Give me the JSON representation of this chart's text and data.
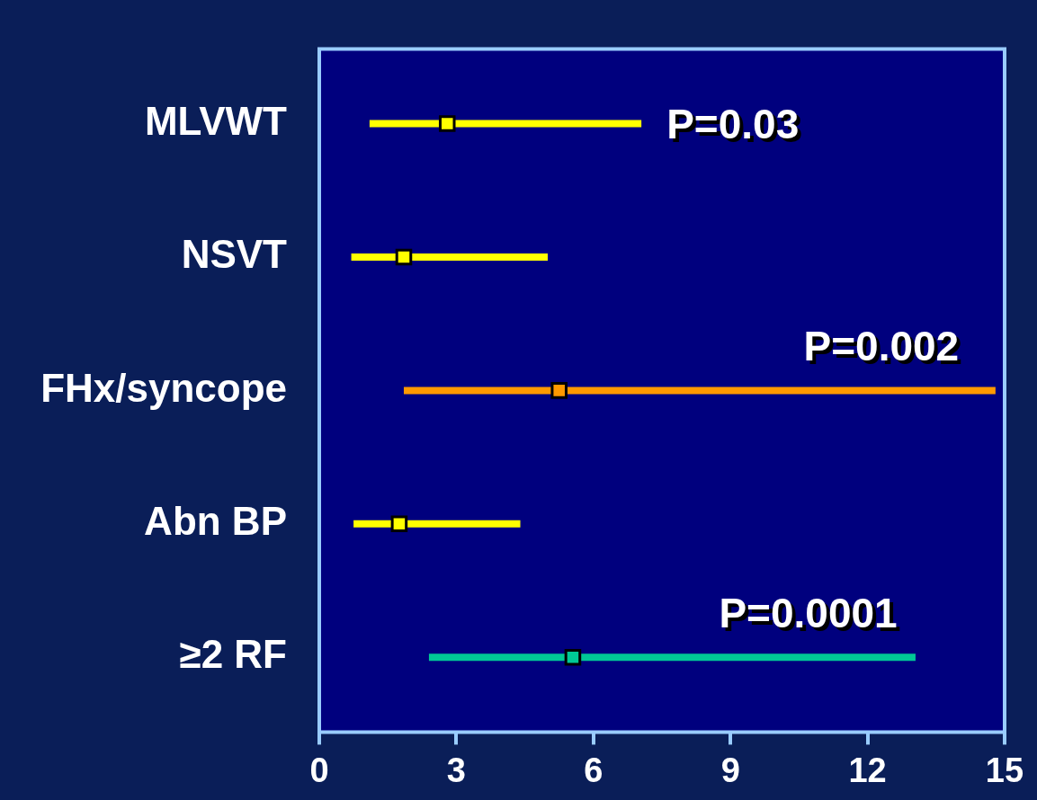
{
  "chart_data": {
    "type": "scatter",
    "orientation": "horizontal",
    "categories": [
      "MLVWT",
      "NSVT",
      "FHx/syncope",
      "Abn BP",
      "≥2 RF"
    ],
    "values": [
      2.8,
      1.85,
      5.25,
      1.75,
      5.55
    ],
    "errors": [
      [
        1.1,
        7.05
      ],
      [
        0.7,
        5.0
      ],
      [
        1.85,
        14.8
      ],
      [
        0.75,
        4.4
      ],
      [
        2.4,
        13.05
      ]
    ],
    "colors": [
      "#ffff00",
      "#ffff00",
      "#ff9900",
      "#ffff00",
      "#00c896"
    ],
    "marker": "square",
    "xlim": [
      0,
      15
    ],
    "xticks": [
      0,
      3,
      6,
      9,
      12,
      15
    ],
    "annotations": [
      {
        "text": "P=0.03",
        "x": 7.05,
        "y": "MLVWT"
      },
      {
        "text": "P=0.002",
        "x": 12.3,
        "y": "FHx/syncope"
      },
      {
        "text": "P=0.0001",
        "x": 10.7,
        "y": "≥2 RF"
      }
    ]
  }
}
